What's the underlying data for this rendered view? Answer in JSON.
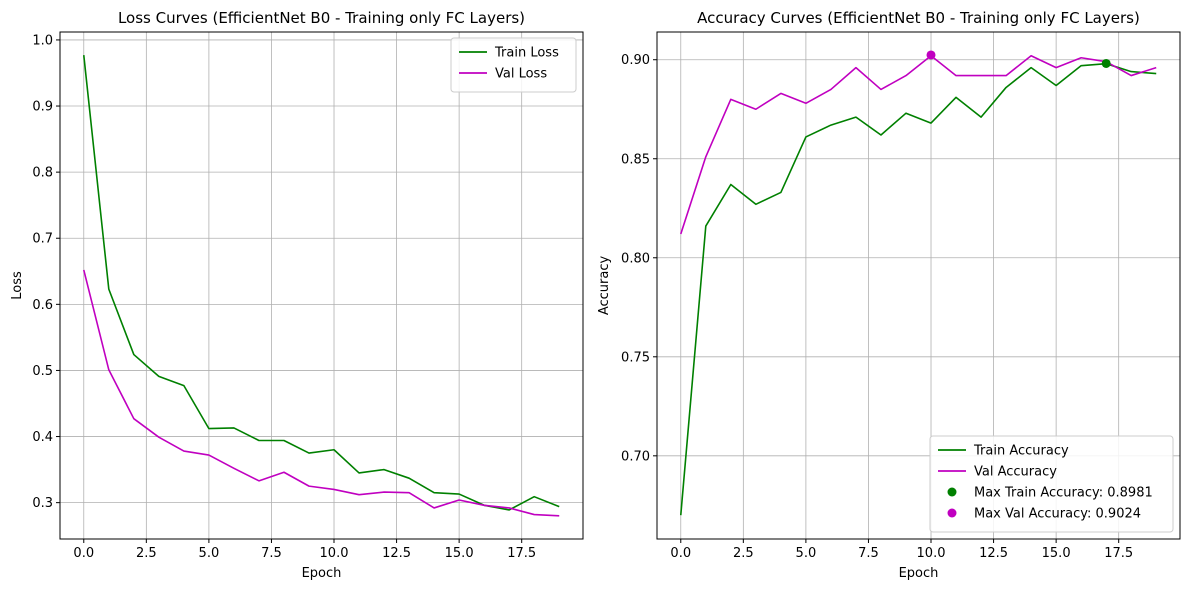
{
  "colors": {
    "train": "#008000",
    "val": "#c000c0",
    "grid": "#b0b0b0",
    "axis": "#000000"
  },
  "chart_data": [
    {
      "type": "line",
      "title": "Loss Curves (EfficientNet B0 - Training only FC Layers)",
      "xlabel": "Epoch",
      "ylabel": "Loss",
      "xlim": [
        -0.95,
        19.95
      ],
      "ylim": [
        0.245,
        1.012
      ],
      "xticks": [
        0,
        2.5,
        5,
        7.5,
        10,
        12.5,
        15,
        17.5
      ],
      "xtick_labels": [
        "0.0",
        "2.5",
        "5.0",
        "7.5",
        "10.0",
        "12.5",
        "15.0",
        "17.5"
      ],
      "yticks": [
        0.3,
        0.4,
        0.5,
        0.6,
        0.7,
        0.8,
        0.9,
        1.0
      ],
      "ytick_labels": [
        "0.3",
        "0.4",
        "0.5",
        "0.6",
        "0.7",
        "0.8",
        "0.9",
        "1.0"
      ],
      "grid": true,
      "legend_position": "top-right",
      "x": [
        0,
        1,
        2,
        3,
        4,
        5,
        6,
        7,
        8,
        9,
        10,
        11,
        12,
        13,
        14,
        15,
        16,
        17,
        18,
        19
      ],
      "series": [
        {
          "name": "Train Loss",
          "color": "#008000",
          "values": [
            0.977,
            0.623,
            0.524,
            0.491,
            0.477,
            0.412,
            0.413,
            0.394,
            0.394,
            0.375,
            0.38,
            0.345,
            0.35,
            0.337,
            0.315,
            0.313,
            0.296,
            0.289,
            0.309,
            0.294
          ]
        },
        {
          "name": "Val Loss",
          "color": "#c000c0",
          "values": [
            0.652,
            0.501,
            0.427,
            0.399,
            0.378,
            0.372,
            0.352,
            0.333,
            0.346,
            0.325,
            0.32,
            0.312,
            0.316,
            0.315,
            0.292,
            0.304,
            0.296,
            0.292,
            0.282,
            0.28
          ]
        }
      ]
    },
    {
      "type": "line",
      "title": "Accuracy Curves (EfficientNet B0 - Training only FC Layers)",
      "xlabel": "Epoch",
      "ylabel": "Accuracy",
      "xlim": [
        -0.95,
        19.95
      ],
      "ylim": [
        0.658,
        0.914
      ],
      "xticks": [
        0,
        2.5,
        5,
        7.5,
        10,
        12.5,
        15,
        17.5
      ],
      "xtick_labels": [
        "0.0",
        "2.5",
        "5.0",
        "7.5",
        "10.0",
        "12.5",
        "15.0",
        "17.5"
      ],
      "yticks": [
        0.7,
        0.75,
        0.8,
        0.85,
        0.9
      ],
      "ytick_labels": [
        "0.70",
        "0.75",
        "0.80",
        "0.85",
        "0.90"
      ],
      "grid": true,
      "legend_position": "bottom-right",
      "x": [
        0,
        1,
        2,
        3,
        4,
        5,
        6,
        7,
        8,
        9,
        10,
        11,
        12,
        13,
        14,
        15,
        16,
        17,
        18,
        19
      ],
      "series": [
        {
          "name": "Train Accuracy",
          "color": "#008000",
          "values": [
            0.67,
            0.816,
            0.837,
            0.827,
            0.833,
            0.861,
            0.867,
            0.871,
            0.862,
            0.873,
            0.868,
            0.881,
            0.871,
            0.886,
            0.896,
            0.887,
            0.897,
            0.898,
            0.894,
            0.893
          ]
        },
        {
          "name": "Val Accuracy",
          "color": "#c000c0",
          "values": [
            0.812,
            0.851,
            0.88,
            0.875,
            0.883,
            0.878,
            0.885,
            0.896,
            0.885,
            0.892,
            0.902,
            0.892,
            0.892,
            0.892,
            0.902,
            0.896,
            0.901,
            0.899,
            0.892,
            0.896
          ]
        }
      ],
      "markers": [
        {
          "name": "Max Train Accuracy: 0.8981",
          "color": "#008000",
          "x": 17,
          "y": 0.8981
        },
        {
          "name": "Max Val Accuracy: 0.9024",
          "color": "#c000c0",
          "x": 10,
          "y": 0.9024
        }
      ]
    }
  ]
}
